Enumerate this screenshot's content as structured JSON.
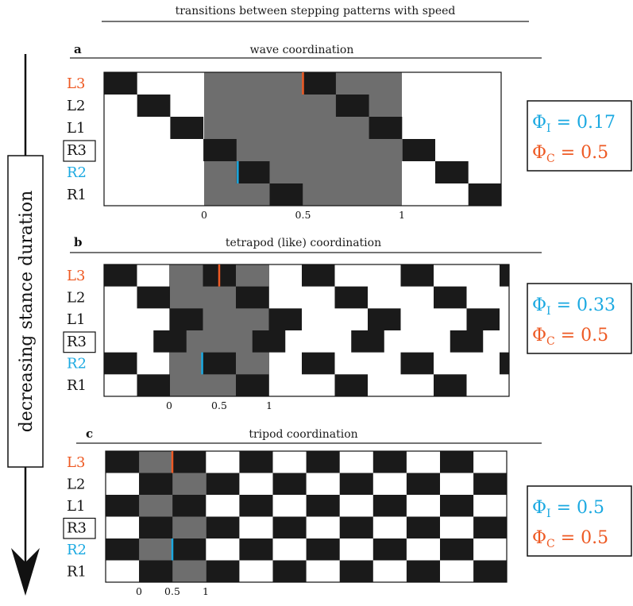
{
  "title": "transitions between stepping patterns with speed",
  "side_label": "decreasing stance duration",
  "colors": {
    "stance": "#1a1a1a",
    "swing": "#ffffff",
    "period_shade": "#6e6e6e",
    "ipsilateral": "#1ba9e1",
    "contralateral": "#ee5a24",
    "text": "#111111"
  },
  "legs": [
    "L3",
    "L2",
    "L1",
    "R3",
    "R2",
    "R1"
  ],
  "highlight": {
    "ipsilateral_leg": "R2",
    "contralateral_leg": "L3",
    "boxed_leg": "R3"
  },
  "panels": [
    {
      "letter": "a",
      "title": "wave coordination",
      "ticks": [
        "0",
        "0.5",
        "1"
      ],
      "phi_labels": [
        "Φ",
        "I",
        " = 0.17",
        "Φ",
        "C",
        " = 0.5"
      ],
      "phi_i": 0.17,
      "phi_c": 0.5,
      "period_steps": 6,
      "cycles_shown": 1.75,
      "stance_fraction": 0.1667,
      "leg_offsets_in_steps": {
        "L3": 0,
        "L2": 1,
        "L1": 2,
        "R3": 3,
        "R2": 4,
        "R1": 5
      }
    },
    {
      "letter": "b",
      "title": "tetrapod (like) coordination",
      "ticks": [
        "0",
        "0.5",
        "1"
      ],
      "phi_labels": [
        "Φ",
        "I",
        " = 0.33",
        "Φ",
        "C",
        " = 0.5"
      ],
      "phi_i": 0.33,
      "phi_c": 0.5,
      "period_steps": 3,
      "cycles_shown": 4.17,
      "stance_fraction": 0.333,
      "leg_offsets_in_steps": {
        "L3": 0,
        "L2": 1,
        "L1": 2,
        "R3": 1.5,
        "R2": 0,
        "R1": 1
      }
    },
    {
      "letter": "c",
      "title": "tripod coordination",
      "ticks": [
        "0",
        "0.5",
        "1"
      ],
      "phi_labels": [
        "Φ",
        "I",
        " = 0.5",
        "Φ",
        "C",
        " = 0.5"
      ],
      "phi_i": 0.5,
      "phi_c": 0.5,
      "period_steps": 2,
      "cycles_shown": 6,
      "stance_fraction": 0.5,
      "leg_offsets_in_steps": {
        "L3": 0,
        "L2": 1,
        "L1": 0,
        "R3": 1,
        "R2": 0,
        "R1": 1
      }
    }
  ]
}
